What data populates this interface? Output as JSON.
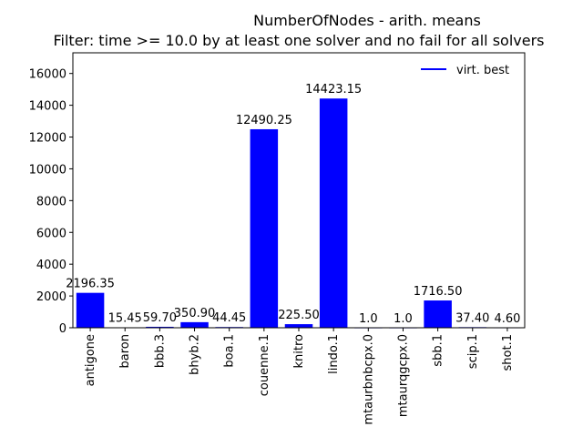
{
  "chart_data": {
    "type": "bar",
    "title_line1": "NumberOfNodes - arith. means",
    "title_line2": "Filter: time >= 10.0 by at least one solver and no fail for all solvers",
    "categories": [
      "antigone",
      "baron",
      "bbb.3",
      "bhyb.2",
      "boa.1",
      "couenne.1",
      "knitro",
      "lindo.1",
      "mtaurbnbcpx.0",
      "mtaurqgcpx.0",
      "sbb.1",
      "scip.1",
      "shot.1"
    ],
    "values": [
      2196.35,
      15.45,
      59.7,
      350.9,
      44.45,
      12490.25,
      225.5,
      14423.15,
      1.0,
      1.0,
      1716.5,
      37.4,
      4.6
    ],
    "value_labels": [
      "2196.35",
      "15.45",
      "59.70",
      "350.90",
      "44.45",
      "12490.25",
      "225.50",
      "14423.15",
      "1.0",
      "1.0",
      "1716.50",
      "37.40",
      "4.60"
    ],
    "ylim": [
      0,
      17300
    ],
    "yticks": [
      0,
      2000,
      4000,
      6000,
      8000,
      10000,
      12000,
      14000,
      16000
    ],
    "bar_color": "#0000ff",
    "legend": {
      "label": "virt. best",
      "color": "#0000ff",
      "placement": "top-right"
    },
    "grid": false,
    "xlabel": "",
    "ylabel": ""
  }
}
